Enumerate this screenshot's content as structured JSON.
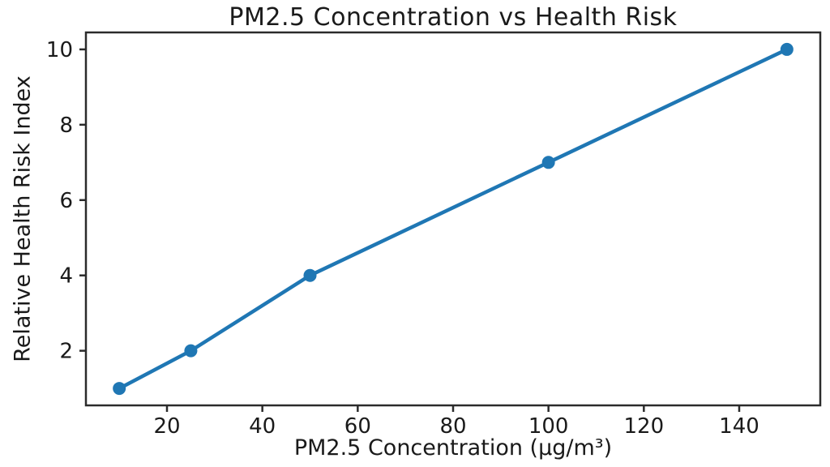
{
  "chart_data": {
    "type": "line",
    "title": "PM2.5 Concentration vs Health Risk",
    "xlabel": "PM2.5 Concentration (μg/m³)",
    "ylabel": "Relative Health Risk Index",
    "x": [
      10,
      25,
      50,
      100,
      150
    ],
    "y": [
      1,
      2,
      4,
      7,
      10
    ],
    "xticks": [
      20,
      40,
      60,
      80,
      100,
      120,
      140
    ],
    "yticks": [
      2,
      4,
      6,
      8,
      10
    ],
    "xlim": [
      3,
      157
    ],
    "ylim": [
      0.55,
      10.45
    ],
    "grid": false,
    "legend": false,
    "marker": "circle",
    "colors": {
      "line": "#1f77b4",
      "marker": "#1f77b4",
      "axis": "#2b2b2b",
      "text": "#1a1a1a",
      "background": "#ffffff"
    }
  }
}
